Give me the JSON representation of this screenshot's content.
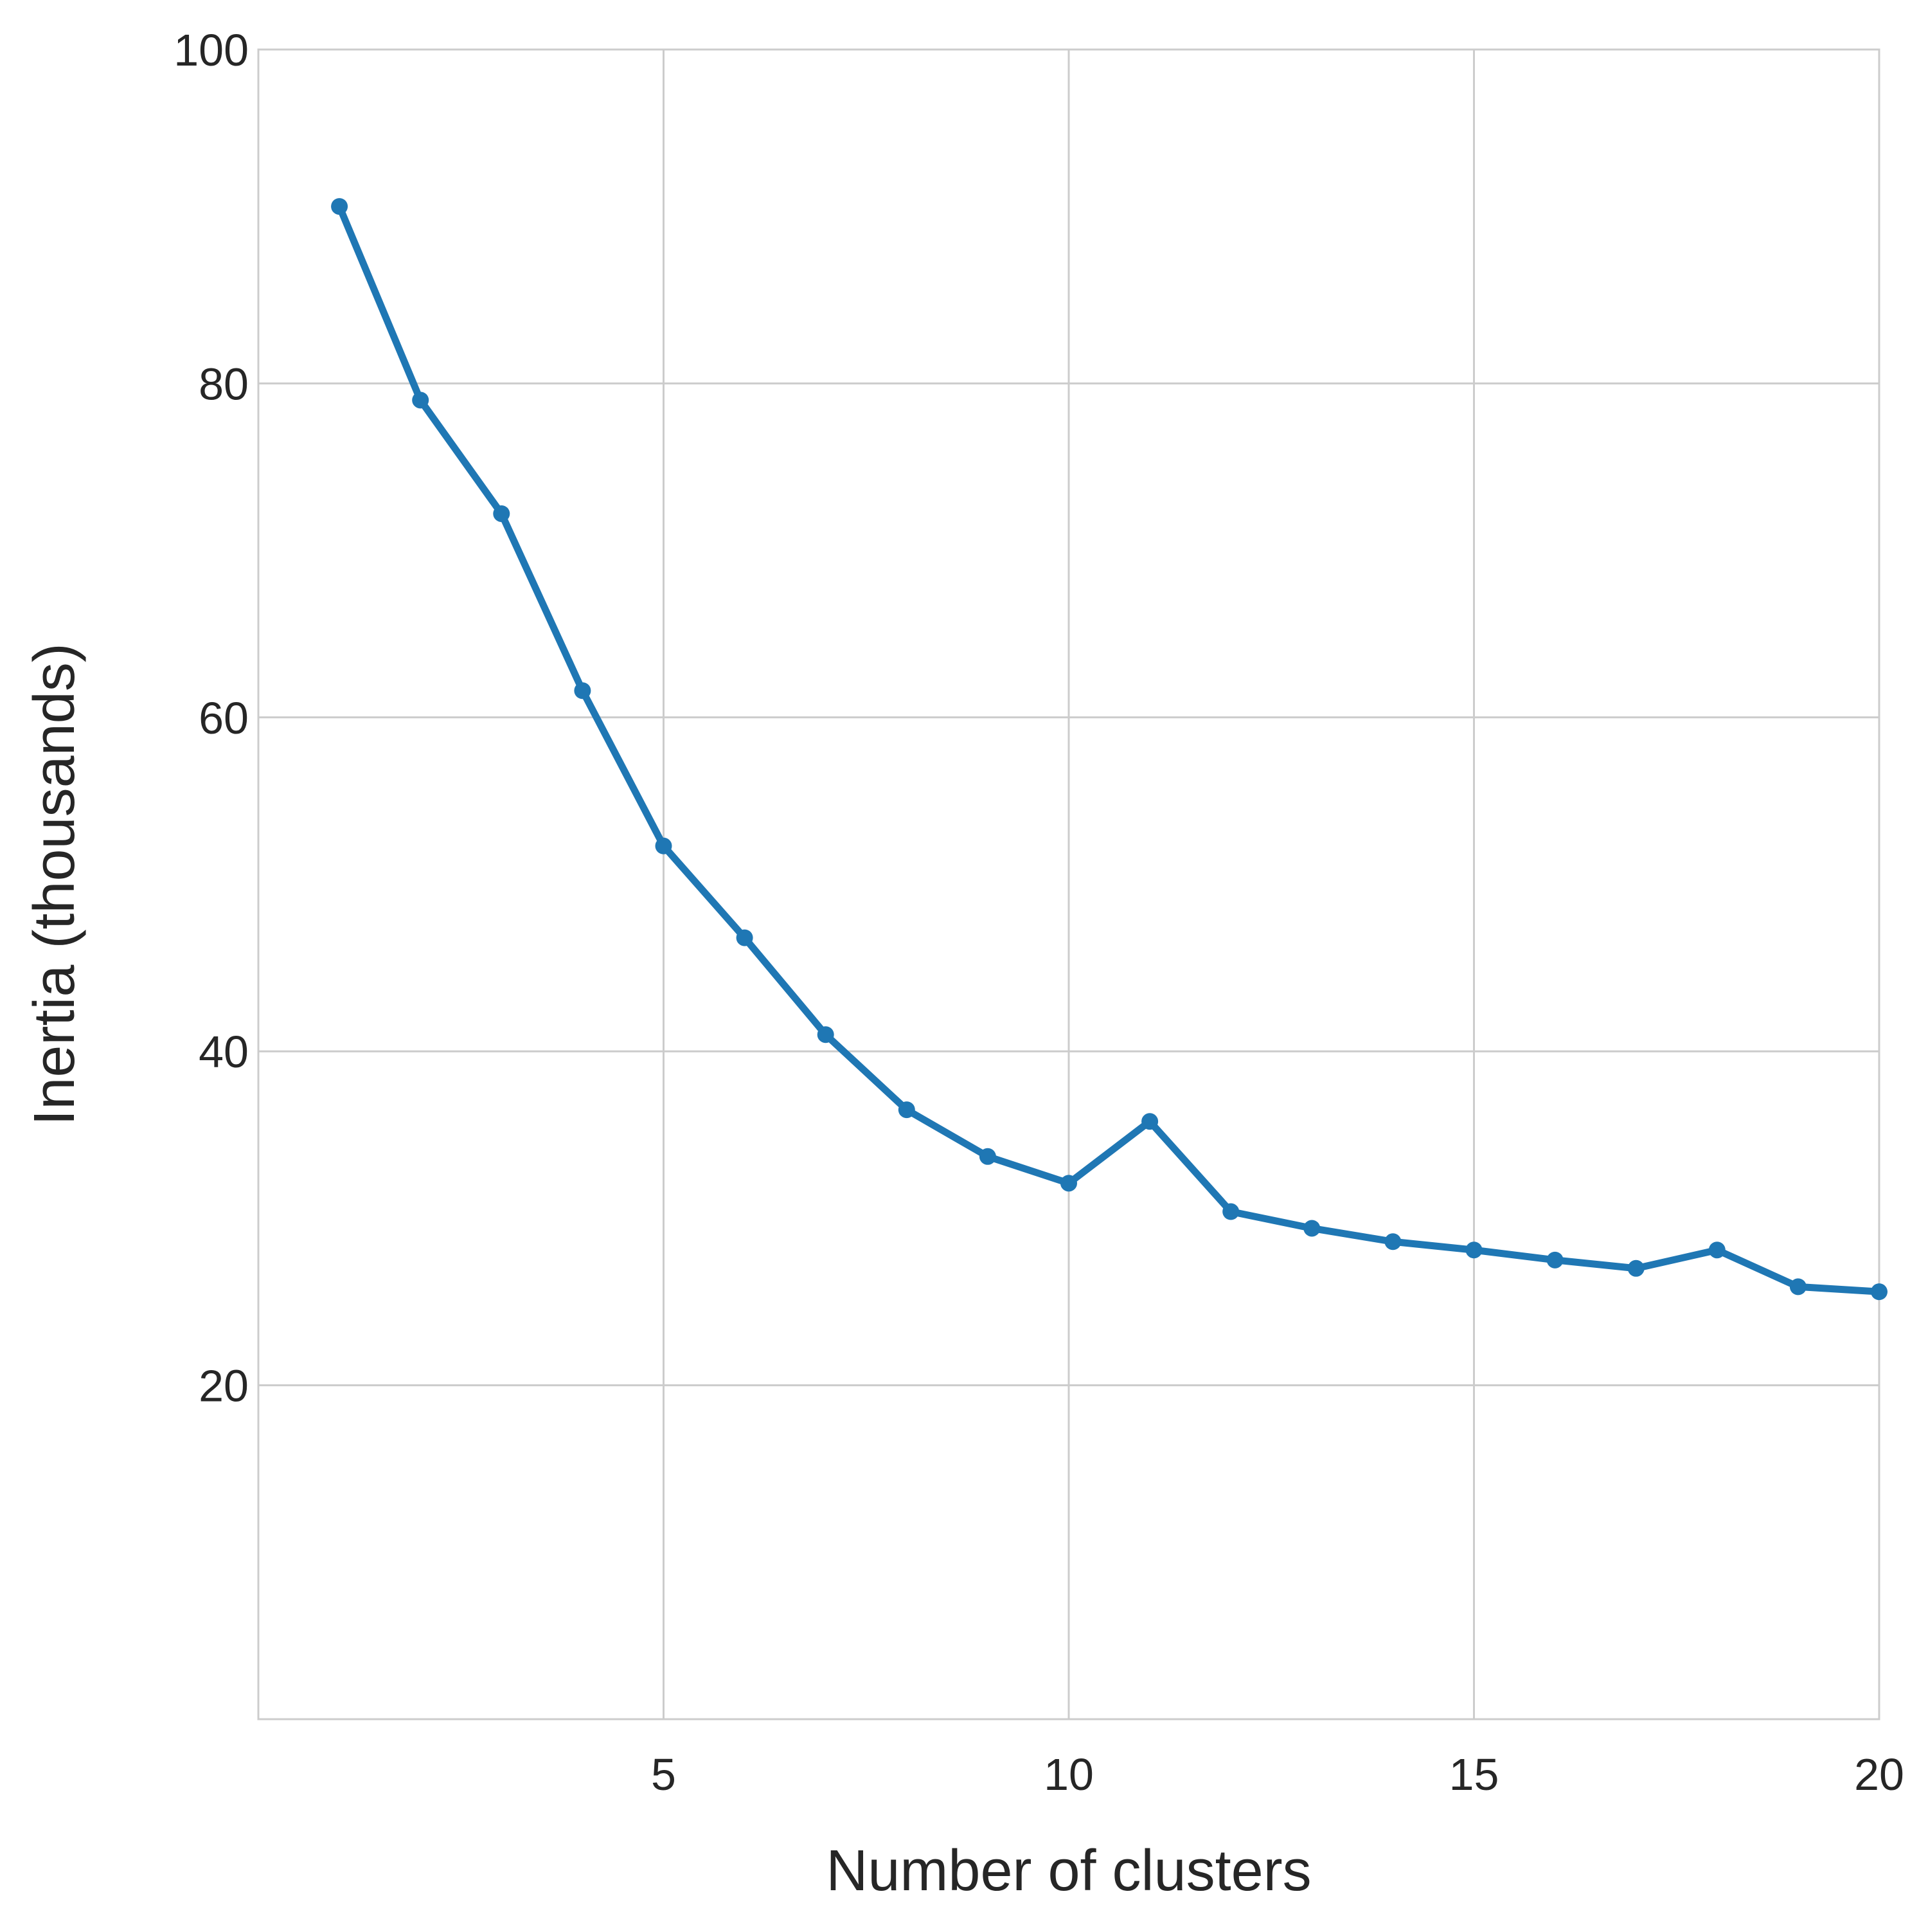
{
  "chart_data": {
    "type": "line",
    "title": "",
    "xlabel": "Number of clusters",
    "ylabel": "Inertia (thousands)",
    "xlim": [
      0,
      20
    ],
    "ylim": [
      0,
      100
    ],
    "xticks": [
      5,
      10,
      15,
      20
    ],
    "yticks": [
      20,
      40,
      60,
      80,
      100
    ],
    "grid": true,
    "legend": "none",
    "series": [
      {
        "color": "#1f77b4",
        "x": [
          1,
          2,
          3,
          4,
          5,
          6,
          7,
          8,
          9,
          10,
          11,
          12,
          13,
          14,
          15,
          16,
          17,
          18,
          19,
          20
        ],
        "y": [
          90.6,
          79.0,
          72.2,
          61.6,
          52.3,
          46.8,
          41.0,
          36.5,
          33.7,
          32.1,
          35.8,
          30.4,
          29.4,
          28.6,
          28.1,
          27.5,
          27.0,
          28.1,
          25.9,
          25.6
        ]
      }
    ]
  }
}
